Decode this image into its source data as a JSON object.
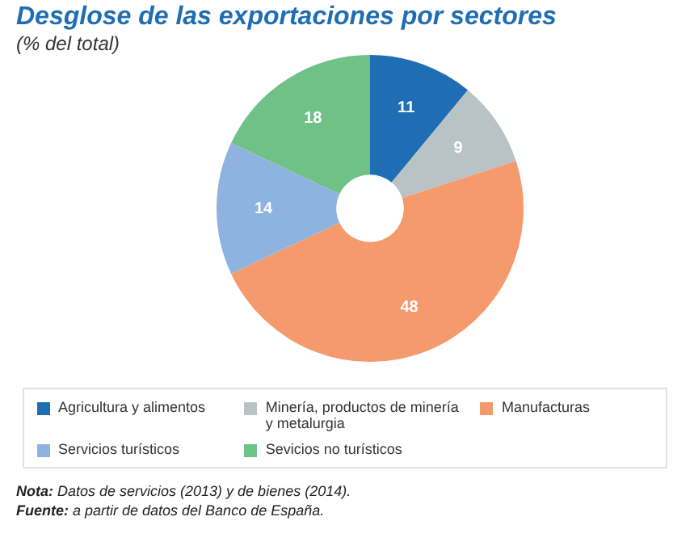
{
  "chart_data": {
    "type": "donut",
    "title": "Desglose de las exportaciones por sectores",
    "subtitle": "(% del total)",
    "categories": [
      "Agricultura y alimentos",
      "Minería, productos de minería y metalurgia",
      "Manufacturas",
      "Servicios turísticos",
      "Sevicios no turísticos"
    ],
    "values": [
      11,
      9,
      48,
      14,
      18
    ],
    "colors": [
      "#1f6db3",
      "#b9c3c6",
      "#f59a6c",
      "#8fb3e0",
      "#70c187"
    ],
    "data_labels": true,
    "legend": "bottom",
    "annotations": [
      "Nota: Datos de servicios (2013) y de bienes (2014).",
      "Fuente: a partir de datos del Banco de España."
    ]
  }
}
